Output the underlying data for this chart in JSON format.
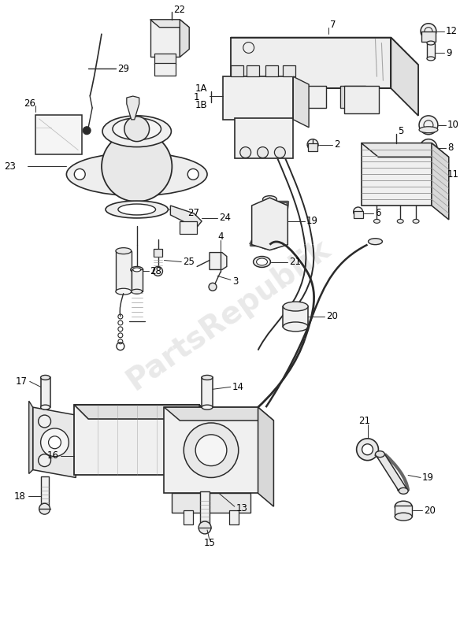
{
  "background_color": "#ffffff",
  "line_color": "#2a2a2a",
  "line_width": 1.0,
  "label_fontsize": 8.5,
  "watermark_text": "PartsRepublik",
  "watermark_color": "#c8c8c8",
  "watermark_alpha": 0.4,
  "fig_w": 5.84,
  "fig_h": 8.0,
  "dpi": 100
}
